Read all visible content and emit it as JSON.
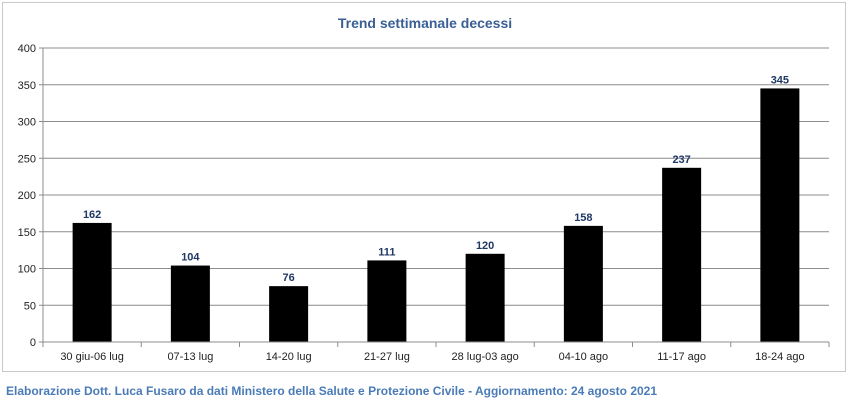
{
  "chart_data": {
    "type": "bar",
    "title": "Trend settimanale decessi",
    "categories": [
      "30 giu-06 lug",
      "07-13 lug",
      "14-20 lug",
      "21-27 lug",
      "28 lug-03 ago",
      "04-10 ago",
      "11-17 ago",
      "18-24 ago"
    ],
    "values": [
      162,
      104,
      76,
      111,
      120,
      158,
      237,
      345
    ],
    "data_labels": [
      "162",
      "104",
      "76",
      "111",
      "120",
      "158",
      "237",
      "345"
    ],
    "ylim": [
      0,
      400
    ],
    "yticks": [
      0,
      50,
      100,
      150,
      200,
      250,
      300,
      350,
      400
    ],
    "grid": true,
    "legend": "none",
    "colors": {
      "bar": "#000000",
      "title": "#3a5f95",
      "data_label": "#1f3864",
      "grid": "#8c8c8c",
      "axis_text": "#222222"
    }
  },
  "footer": "Elaborazione Dott. Luca Fusaro da dati Ministero della Salute e Protezione Civile - Aggiornamento: 24 agosto 2021"
}
